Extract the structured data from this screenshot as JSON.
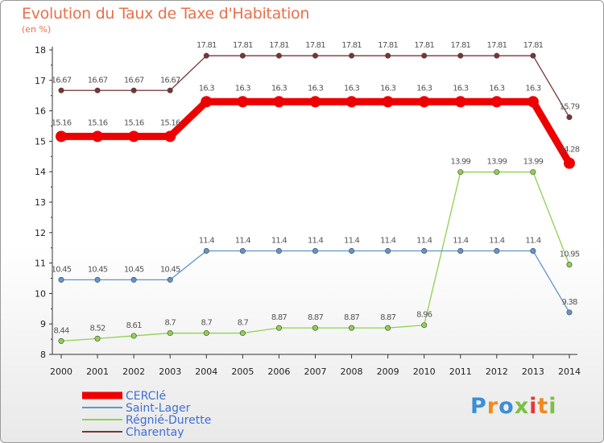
{
  "title": "Evolution du Taux de Taxe d'Habitation",
  "unit_label": "(en %)",
  "logo": {
    "text": "Proxiti",
    "letter_colors": [
      "#3a8fd6",
      "#f08a1c",
      "#3a8fd6",
      "#7ac143",
      "#e13a3a",
      "#f08a1c",
      "#7ac143"
    ]
  },
  "chart_data": {
    "type": "line",
    "title": "Evolution du Taux de Taxe d'Habitation",
    "ylabel": "(en %)",
    "xlabel": "",
    "ylim": [
      8,
      18
    ],
    "yticks": [
      8,
      9,
      10,
      11,
      12,
      13,
      14,
      15,
      16,
      17,
      18
    ],
    "grid": false,
    "legend_position": "bottom-left",
    "categories": [
      "2000",
      "2001",
      "2002",
      "2003",
      "2004",
      "2005",
      "2006",
      "2007",
      "2008",
      "2009",
      "2010",
      "2011",
      "2012",
      "2013",
      "2014"
    ],
    "series": [
      {
        "name": "Charentay",
        "color": "#7a3434",
        "values": [
          16.67,
          16.67,
          16.67,
          16.67,
          17.81,
          17.81,
          17.81,
          17.81,
          17.81,
          17.81,
          17.81,
          17.81,
          17.81,
          17.81,
          15.79
        ],
        "labels": [
          "16.67",
          "16.67",
          "16.67",
          "16.67",
          "17.81",
          "17.81",
          "17.81",
          "17.81",
          "17.81",
          "17.81",
          "17.81",
          "17.81",
          "17.81",
          "17.81",
          "15.79"
        ]
      },
      {
        "name": "Régnié-Durette",
        "color": "#8fd14f",
        "values": [
          8.44,
          8.52,
          8.61,
          8.7,
          8.7,
          8.7,
          8.87,
          8.87,
          8.87,
          8.87,
          8.96,
          13.99,
          13.99,
          13.99,
          10.95
        ],
        "labels": [
          "8.44",
          "8.52",
          "8.61",
          "8.7",
          "8.7",
          "8.7",
          "8.87",
          "8.87",
          "8.87",
          "8.87",
          "8.96",
          "13.99",
          "13.99",
          "13.99",
          "10.95"
        ]
      },
      {
        "name": "Saint-Lager",
        "color": "#5f95cf",
        "values": [
          10.45,
          10.45,
          10.45,
          10.45,
          11.4,
          11.4,
          11.4,
          11.4,
          11.4,
          11.4,
          11.4,
          11.4,
          11.4,
          11.4,
          9.38
        ],
        "labels": [
          "10.45",
          "10.45",
          "10.45",
          "10.45",
          "11.4",
          "11.4",
          "11.4",
          "11.4",
          "11.4",
          "11.4",
          "11.4",
          "11.4",
          "11.4",
          "11.4",
          "9.38"
        ]
      },
      {
        "name": "CERCIé",
        "color": "#ee0000",
        "values": [
          15.16,
          15.16,
          15.16,
          15.16,
          16.3,
          16.3,
          16.3,
          16.3,
          16.3,
          16.3,
          16.3,
          16.3,
          16.3,
          16.3,
          14.28
        ],
        "labels": [
          "15.16",
          "15.16",
          "15.16",
          "15.16",
          "16.3",
          "16.3",
          "16.3",
          "16.3",
          "16.3",
          "16.3",
          "16.3",
          "16.3",
          "16.3",
          "16.3",
          "14.28"
        ]
      }
    ],
    "legend": [
      "CERCIé",
      "Saint-Lager",
      "Régnié-Durette",
      "Charentay"
    ]
  }
}
